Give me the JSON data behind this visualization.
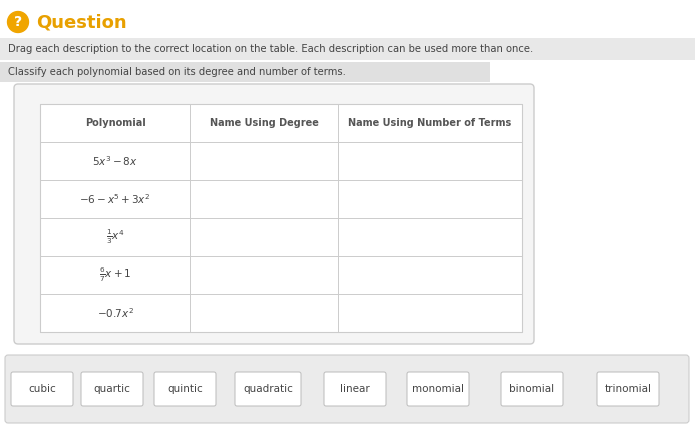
{
  "bg_color": "#ffffff",
  "question_icon_color": "#f0a500",
  "question_text_color": "#e8a000",
  "question_label": "Question",
  "instruction_line1": "Drag each description to the correct location on the table. Each description can be used more than once.",
  "instruction_line2": "Classify each polynomial based on its degree and number of terms.",
  "table_headers": [
    "Polynomial",
    "Name Using Degree",
    "Name Using Number of Terms"
  ],
  "drag_items": [
    "cubic",
    "quartic",
    "quintic",
    "quadratic",
    "linear",
    "monomial",
    "binomial",
    "trinomial"
  ],
  "table_border_color": "#cccccc",
  "outer_box_color": "#f5f5f5",
  "drag_box_color": "#ebebeb",
  "text_color": "#444444",
  "header_color": "#555555",
  "row_texts_math": [
    "$5x^3 - 8x$",
    "$-6 - x^5 + 3x^2$",
    "$\\frac{1}{3}x^4$",
    "$\\frac{6}{7}x + 1$",
    "$-0.7x^2$"
  ],
  "fig_width": 6.95,
  "fig_height": 4.3,
  "dpi": 100
}
